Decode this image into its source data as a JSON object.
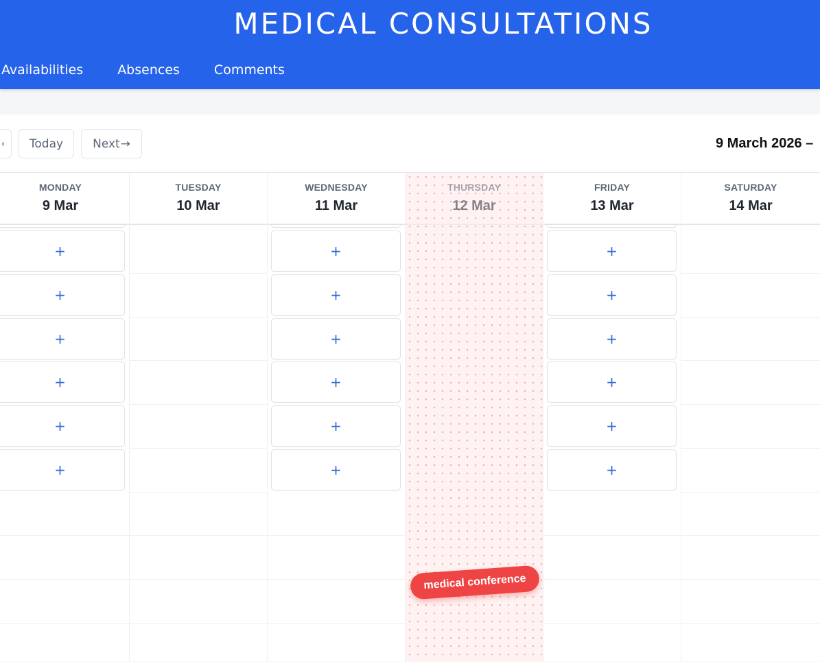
{
  "app": {
    "title": "MEDICAL CONSULTATIONS"
  },
  "nav": {
    "items": [
      {
        "label": "Availabilities"
      },
      {
        "label": "Absences"
      },
      {
        "label": "Comments"
      }
    ]
  },
  "toolbar": {
    "prev_icon": "chevron-left-icon",
    "today_label": "Today",
    "next_label": "Next",
    "next_arrow": "→",
    "date_range": "9 March 2026 –"
  },
  "slot": {
    "add_label": "+"
  },
  "days": [
    {
      "weekday": "MONDAY",
      "date": "9 Mar"
    },
    {
      "weekday": "TUESDAY",
      "date": "10 Mar"
    },
    {
      "weekday": "WEDNESDAY",
      "date": "11 Mar"
    },
    {
      "weekday": "THURSDAY",
      "date": "12 Mar"
    },
    {
      "weekday": "FRIDAY",
      "date": "13 Mar"
    },
    {
      "weekday": "SATURDAY",
      "date": "14 Mar"
    }
  ],
  "absence": {
    "label": "medical conference"
  },
  "colors": {
    "accent": "#2563eb",
    "absence": "#ef4444"
  }
}
